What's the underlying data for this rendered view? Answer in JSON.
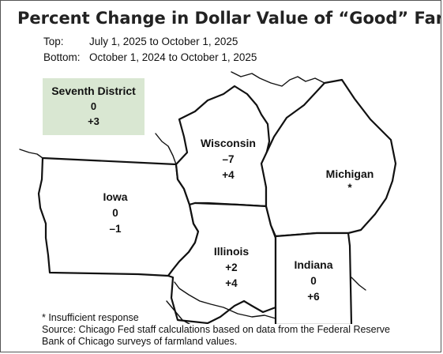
{
  "title": "Percent Change in Dollar Value of “Good” Farmland",
  "legend": {
    "top_key": "Top:",
    "top_value": "July 1, 2025 to October 1, 2025",
    "bottom_key": "Bottom:",
    "bottom_value": "October 1, 2024 to October 1, 2025"
  },
  "district": {
    "name": "Seventh District",
    "top": "0",
    "bottom": "+3"
  },
  "states": {
    "wisconsin": {
      "name": "Wisconsin",
      "top": "–7",
      "bottom": "+4"
    },
    "michigan": {
      "name": "Michigan",
      "top": "*"
    },
    "iowa": {
      "name": "Iowa",
      "top": "0",
      "bottom": "–1"
    },
    "illinois": {
      "name": "Illinois",
      "top": "+2",
      "bottom": "+4"
    },
    "indiana": {
      "name": "Indiana",
      "top": "0",
      "bottom": "+6"
    }
  },
  "footnotes": {
    "insufficient": "* Insufficient response",
    "source_line1": "Source: Chicago Fed staff calculations based on data from the Federal Reserve",
    "source_line2": "Bank of Chicago surveys of farmland values."
  },
  "colors": {
    "district_box": "#d9e7d2",
    "outline": "#111111"
  }
}
